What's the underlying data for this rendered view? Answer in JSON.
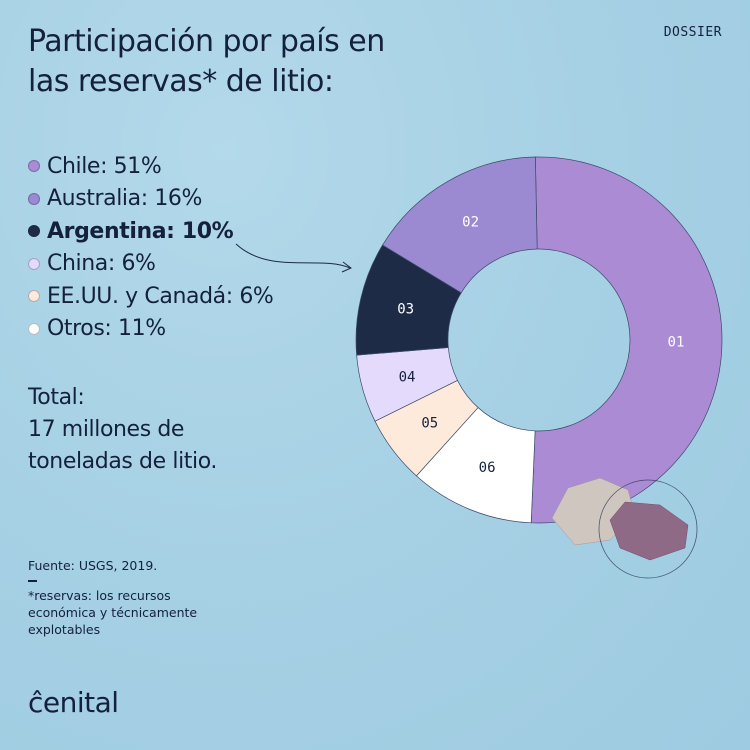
{
  "header": {
    "title": "Participación por país en las reservas* de litio:",
    "tag": "DOSSIER"
  },
  "chart_data": {
    "type": "pie",
    "donut": true,
    "categories": [
      "Chile",
      "Australia",
      "Argentina",
      "China",
      "EE.UU. y Canadá",
      "Otros"
    ],
    "labels": [
      "Chile: 51%",
      "Australia: 16%",
      "Argentina: 10%",
      "China: 6%",
      "EE.UU. y Canadá: 6%",
      "Otros: 11%"
    ],
    "segment_numbers": [
      "01",
      "02",
      "03",
      "04",
      "05",
      "06"
    ],
    "values": [
      51,
      16,
      10,
      6,
      6,
      11
    ],
    "unit": "%",
    "colors": [
      "#aa8bd4",
      "#9b8ad1",
      "#1d2b47",
      "#e3dafc",
      "#fdeada",
      "#ffffff"
    ],
    "number_colors": [
      "#ffffff",
      "#ffffff",
      "#ffffff",
      "#14213d",
      "#14213d",
      "#14213d"
    ],
    "highlighted": "Argentina",
    "direction": "counterclockwise from top for listed order (Chile clockwise)"
  },
  "total": {
    "label": "Total:",
    "value": "17 millones de toneladas de litio."
  },
  "footer": {
    "source": "Fuente: USGS, 2019.",
    "note": "*reservas: los recursos económica y técnicamente explotables"
  },
  "brand": {
    "logo": "ĉenital"
  }
}
